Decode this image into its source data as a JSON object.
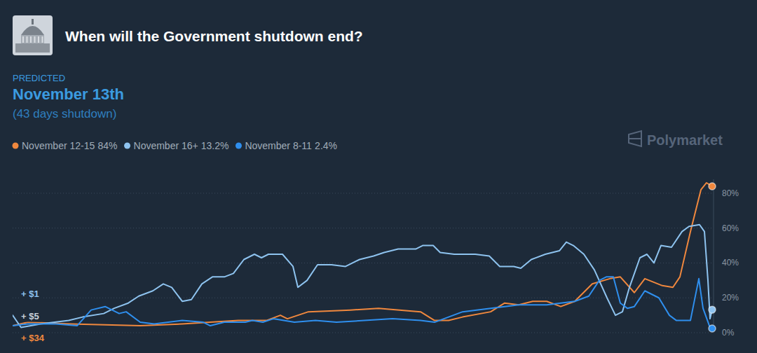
{
  "chart_data": {
    "type": "line",
    "title": "When will the Government shutdown end?",
    "predicted_label": "PREDICTED",
    "prediction": "November 13th",
    "prediction_note": "(43 days shutdown)",
    "brand": "Polymarket",
    "legend": "top-left",
    "grid": true,
    "tick_labels": "y",
    "xlim": [
      0,
      1000
    ],
    "ylim": [
      0,
      88
    ],
    "yticks": [
      {
        "value": 0,
        "label": "0%"
      },
      {
        "value": 20,
        "label": "20%"
      },
      {
        "value": 40,
        "label": "40%"
      },
      {
        "value": 60,
        "label": "60%"
      },
      {
        "value": 80,
        "label": "80%"
      }
    ],
    "series": [
      {
        "name": "November 12-15",
        "current_label": "84%",
        "color": "#f0883e",
        "marker": "end-dot",
        "line_style": "solid",
        "x": [
          0,
          22,
          82,
          182,
          242,
          282,
          322,
          362,
          382,
          392,
          422,
          482,
          522,
          552,
          582,
          602,
          622,
          642,
          682,
          702,
          722,
          742,
          762,
          782,
          802,
          827,
          852,
          867,
          887,
          902,
          927,
          942,
          952,
          967,
          982,
          990,
          998
        ],
        "values": [
          4,
          6,
          5,
          4,
          5,
          6,
          7,
          7,
          10,
          8,
          12,
          13,
          14,
          13,
          12,
          7,
          7,
          9,
          12,
          17,
          16,
          18,
          18,
          15,
          18,
          28,
          31,
          32,
          23,
          31,
          27,
          26,
          32,
          58,
          82,
          86,
          84
        ]
      },
      {
        "name": "November 16+",
        "current_label": "13.2%",
        "color": "#8ec3ef",
        "marker": "end-dot",
        "line_style": "solid",
        "x": [
          0,
          12,
          40,
          80,
          100,
          130,
          145,
          165,
          180,
          200,
          215,
          227,
          242,
          255,
          270,
          285,
          302,
          315,
          330,
          345,
          355,
          365,
          385,
          400,
          407,
          420,
          435,
          455,
          475,
          495,
          515,
          530,
          550,
          575,
          585,
          600,
          610,
          630,
          660,
          680,
          695,
          715,
          725,
          740,
          760,
          780,
          790,
          800,
          815,
          830,
          848,
          860,
          870,
          880,
          895,
          905,
          915,
          925,
          940,
          955,
          965,
          980,
          987,
          992,
          995,
          998
        ],
        "values": [
          10,
          3,
          5,
          7,
          9,
          11,
          14,
          17,
          21,
          24,
          28,
          26,
          18,
          19,
          28,
          32,
          32,
          34,
          42,
          45,
          43,
          45,
          45,
          38,
          26,
          30,
          39,
          39,
          38,
          42,
          44,
          46,
          48,
          48,
          50,
          50,
          46,
          45,
          45,
          44,
          38,
          38,
          37,
          42,
          45,
          47,
          52,
          50,
          45,
          36,
          20,
          10,
          12,
          26,
          43,
          45,
          40,
          50,
          49,
          58,
          61,
          62,
          58,
          30,
          8,
          13.2
        ]
      },
      {
        "name": "November 8-11",
        "current_label": "2.4%",
        "color": "#2f8fee",
        "marker": "end-dot",
        "line_style": "solid",
        "x": [
          0,
          22,
          62,
          92,
          112,
          132,
          152,
          162,
          182,
          202,
          242,
          272,
          282,
          302,
          332,
          342,
          357,
          372,
          402,
          432,
          462,
          502,
          542,
          582,
          602,
          622,
          642,
          682,
          702,
          722,
          762,
          782,
          802,
          822,
          837,
          847,
          857,
          867,
          877,
          887,
          902,
          922,
          937,
          947,
          967,
          979,
          985,
          994,
          998
        ],
        "values": [
          4,
          5,
          5,
          4,
          13,
          15,
          11,
          12,
          6,
          5,
          7,
          6,
          4,
          6,
          6,
          7,
          6,
          8,
          6,
          7,
          6,
          7,
          8,
          7,
          6,
          9,
          12,
          14,
          15,
          16,
          16,
          17,
          18,
          21,
          30,
          32,
          32,
          17,
          14,
          15,
          24,
          20,
          10,
          7,
          7,
          31,
          14,
          4,
          2.4
        ]
      }
    ],
    "annotations": [
      {
        "text": "+ $1",
        "color": "#8ec3ef"
      },
      {
        "text": "+ $5",
        "color": "#c9d1da"
      },
      {
        "text": "+ $34",
        "color": "#f0883e"
      }
    ]
  }
}
